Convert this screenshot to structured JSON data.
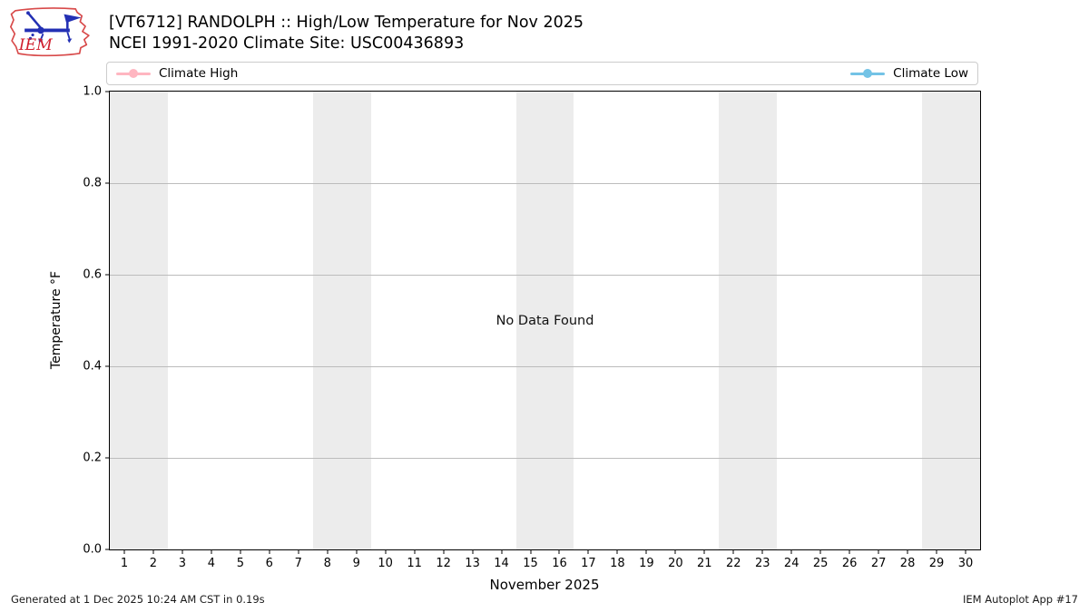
{
  "header": {
    "title_line1": "[VT6712] RANDOLPH :: High/Low Temperature for Nov 2025",
    "title_line2": "NCEI 1991-2020 Climate Site: USC00436893",
    "logo_text": "IEM"
  },
  "legend": {
    "items": [
      {
        "label": "Climate High",
        "color": "#ffb6c1"
      },
      {
        "label": "Climate Low",
        "color": "#73c3e6"
      }
    ]
  },
  "chart_data": {
    "type": "line",
    "title": "[VT6712] RANDOLPH :: High/Low Temperature for Nov 2025",
    "subtitle": "NCEI 1991-2020 Climate Site: USC00436893",
    "xlabel": "November 2025",
    "ylabel": "Temperature °F",
    "annotation": "No Data Found",
    "xlim": [
      0.5,
      30.5
    ],
    "ylim": [
      0.0,
      1.0
    ],
    "x_ticks": [
      1,
      2,
      3,
      4,
      5,
      6,
      7,
      8,
      9,
      10,
      11,
      12,
      13,
      14,
      15,
      16,
      17,
      18,
      19,
      20,
      21,
      22,
      23,
      24,
      25,
      26,
      27,
      28,
      29,
      30
    ],
    "y_ticks": [
      {
        "label": "0.0",
        "value": 0.0
      },
      {
        "label": "0.2",
        "value": 0.2
      },
      {
        "label": "0.4",
        "value": 0.4
      },
      {
        "label": "0.6",
        "value": 0.6
      },
      {
        "label": "0.8",
        "value": 0.8
      },
      {
        "label": "1.0",
        "value": 1.0
      }
    ],
    "grid": true,
    "legend_position": "top, expanded, two columns",
    "weekend_bands": [
      [
        0.5,
        2.5
      ],
      [
        7.5,
        9.5
      ],
      [
        14.5,
        16.5
      ],
      [
        21.5,
        23.5
      ],
      [
        28.5,
        30.5
      ]
    ],
    "band_color": "#ececec",
    "series": [
      {
        "name": "Climate High",
        "color": "#ffb6c1",
        "x": [],
        "values": []
      },
      {
        "name": "Climate Low",
        "color": "#73c3e6",
        "x": [],
        "values": []
      }
    ]
  },
  "footer": {
    "generated": "Generated at 1 Dec 2025 10:24 AM CST in 0.19s",
    "app": "IEM Autoplot App #17"
  }
}
